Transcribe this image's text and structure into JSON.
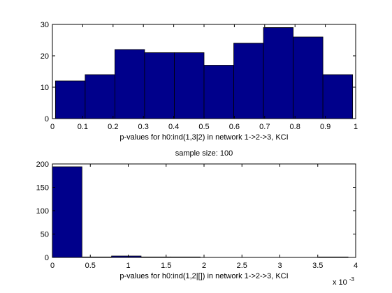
{
  "colors": {
    "bar_fill": "#00008B",
    "bar_edge": "#000000",
    "axes": "#000000",
    "background": "#ffffff"
  },
  "chart_data": [
    {
      "type": "bar",
      "title": "",
      "xlabel": "p-values for h0:ind(1,3|2) in network 1->2->3, KCI",
      "ylabel": "",
      "xlim": [
        0,
        1
      ],
      "ylim": [
        0,
        30
      ],
      "xticks": [
        0,
        0.1,
        0.2,
        0.3,
        0.4,
        0.5,
        0.6,
        0.7,
        0.8,
        0.9,
        1
      ],
      "xtick_labels": [
        "0",
        "0.1",
        "0.2",
        "0.3",
        "0.4",
        "0.5",
        "0.6",
        "0.7",
        "0.8",
        "0.9",
        "1"
      ],
      "yticks": [
        0,
        10,
        20,
        30
      ],
      "ytick_labels": [
        "0",
        "10",
        "20",
        "30"
      ],
      "bins": [
        [
          0.01,
          0.108,
          12
        ],
        [
          0.108,
          0.206,
          14
        ],
        [
          0.206,
          0.304,
          22
        ],
        [
          0.304,
          0.402,
          21
        ],
        [
          0.402,
          0.5,
          21
        ],
        [
          0.5,
          0.598,
          17
        ],
        [
          0.598,
          0.696,
          24
        ],
        [
          0.696,
          0.794,
          29
        ],
        [
          0.794,
          0.892,
          26
        ],
        [
          0.892,
          0.99,
          14
        ]
      ],
      "grid": false
    },
    {
      "type": "bar",
      "title": "sample size: 100",
      "xlabel": "p-values for h0:ind(1,2|[]) in network 1->2->3, KCI",
      "ylabel": "",
      "xlim": [
        0,
        4
      ],
      "ylim": [
        0,
        200
      ],
      "x_scale_note": "x 10^-3",
      "xticks": [
        0,
        0.5,
        1,
        1.5,
        2,
        2.5,
        3,
        3.5,
        4
      ],
      "xtick_labels": [
        "0",
        "0.5",
        "1",
        "1.5",
        "2",
        "2.5",
        "3",
        "3.5",
        "4"
      ],
      "yticks": [
        0,
        50,
        100,
        150,
        200
      ],
      "ytick_labels": [
        "0",
        "50",
        "100",
        "150",
        "200"
      ],
      "bins": [
        [
          0.0,
          0.39,
          194
        ],
        [
          0.39,
          0.78,
          1
        ],
        [
          0.78,
          1.17,
          3
        ],
        [
          1.17,
          1.56,
          1
        ],
        [
          1.56,
          1.95,
          1
        ],
        [
          1.95,
          2.34,
          0
        ],
        [
          2.34,
          2.73,
          0
        ],
        [
          2.73,
          3.12,
          0
        ],
        [
          3.12,
          3.51,
          0
        ],
        [
          3.51,
          3.9,
          1
        ]
      ],
      "grid": false
    }
  ],
  "axis_multiplier": {
    "base": "x 10",
    "exponent": "-3"
  }
}
